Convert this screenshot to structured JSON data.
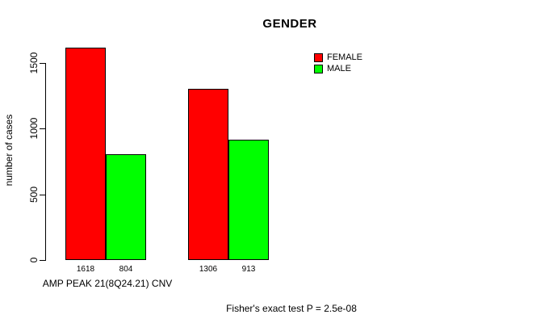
{
  "header": {
    "title": "GENDER"
  },
  "axes": {
    "ylabel": "number of cases",
    "xlabel": "AMP PEAK 21(8Q24.21) CNV"
  },
  "legend": {
    "items": [
      {
        "label": "FEMALE",
        "color": "#ff0000"
      },
      {
        "label": "MALE",
        "color": "#00ff00"
      }
    ]
  },
  "footer": {
    "note": "Fisher's exact test P = 2.5e-08"
  },
  "chart_data": {
    "type": "bar",
    "title": "GENDER",
    "xlabel": "AMP PEAK 21(8Q24.21) CNV",
    "ylabel": "number of cases",
    "categories": [
      "",
      ""
    ],
    "series": [
      {
        "name": "FEMALE",
        "color": "#ff0000",
        "values": [
          1618,
          1306
        ]
      },
      {
        "name": "MALE",
        "color": "#00ff00",
        "values": [
          804,
          913
        ]
      }
    ],
    "bar_value_labels": [
      [
        "1618",
        "804"
      ],
      [
        "1306",
        "913"
      ]
    ],
    "yticks": [
      0,
      500,
      1000,
      1500
    ],
    "ylim": [
      0,
      1618
    ],
    "grid": false,
    "legend_position": "top-right",
    "annotation": "Fisher's exact test P = 2.5e-08",
    "background": "#ffffff",
    "text_color": "#000000"
  }
}
